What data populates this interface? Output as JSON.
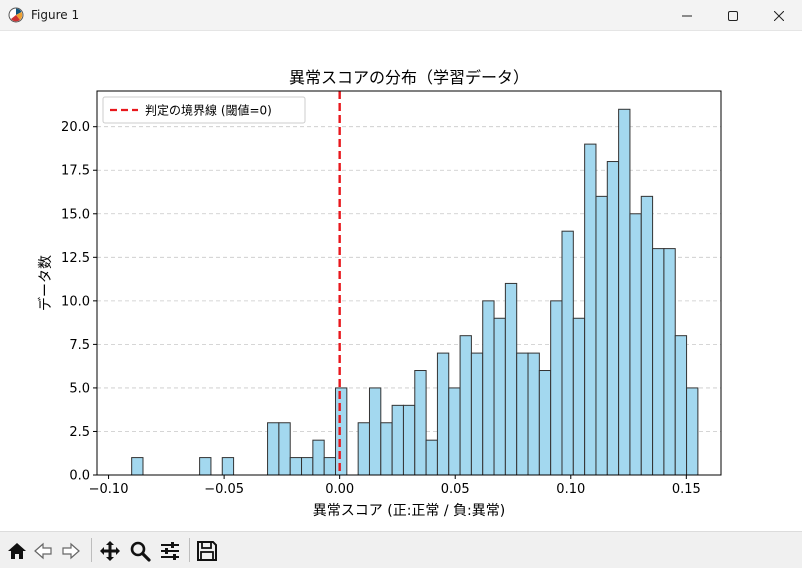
{
  "window": {
    "title": "Figure 1",
    "icons": [
      "matplotlib-icon",
      "minimize-icon",
      "maximize-icon",
      "close-icon"
    ]
  },
  "toolbar": {
    "buttons": [
      "home-icon",
      "back-icon",
      "forward-icon",
      "pan-icon",
      "zoom-icon",
      "configure-subplots-icon",
      "save-icon"
    ]
  },
  "chart_data": {
    "type": "bar",
    "title": "異常スコアの分布（学習データ）",
    "xlabel": "異常スコア (正:正常 / 負:異常)",
    "ylabel": "データ数",
    "xlim": [
      -0.105,
      0.165
    ],
    "ylim": [
      0,
      22.05
    ],
    "xticks": [
      "−0.10",
      "−0.05",
      "0.00",
      "0.05",
      "0.10",
      "0.15"
    ],
    "xtick_values": [
      -0.1,
      -0.05,
      0.0,
      0.05,
      0.1,
      0.15
    ],
    "yticks": [
      "0.0",
      "2.5",
      "5.0",
      "7.5",
      "10.0",
      "12.5",
      "15.0",
      "17.5",
      "20.0"
    ],
    "ytick_values": [
      0,
      2.5,
      5.0,
      7.5,
      10.0,
      12.5,
      15.0,
      17.5,
      20.0
    ],
    "grid": "y-dashed",
    "bin_start": -0.09,
    "bin_width": 0.0049,
    "counts": [
      1,
      0,
      0,
      0,
      0,
      0,
      1,
      0,
      1,
      0,
      0,
      0,
      3,
      3,
      1,
      1,
      2,
      1,
      5,
      0,
      3,
      5,
      3,
      4,
      4,
      6,
      2,
      7,
      5,
      8,
      7,
      10,
      9,
      11,
      7,
      7,
      6,
      10,
      14,
      9,
      19,
      16,
      18,
      21,
      15,
      16,
      13,
      13,
      8,
      5
    ],
    "bar_color": "#a3d8ef",
    "edge_color": "#333333",
    "threshold": {
      "x": 0.0,
      "label": "判定の境界線 (閾値=0)",
      "color": "#e8171c",
      "style": "dashed"
    },
    "legend": "upper-left"
  }
}
